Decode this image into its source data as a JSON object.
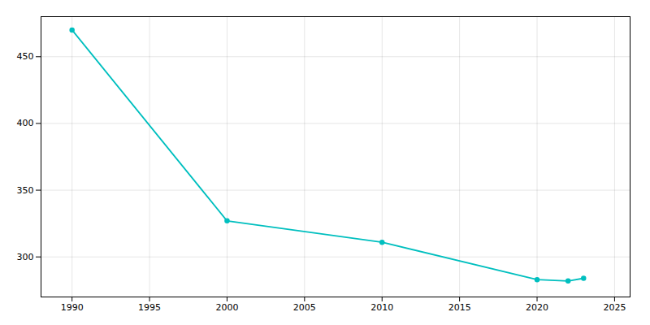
{
  "chart_data": {
    "type": "line",
    "x": [
      1990,
      2000,
      2010,
      2020,
      2022,
      2023
    ],
    "values": [
      470,
      327,
      311,
      283,
      282,
      284
    ],
    "color": "#00BFBF",
    "marker": "circle",
    "xlim": [
      1988,
      2026
    ],
    "ylim": [
      270,
      480
    ],
    "xticks": [
      1990,
      1995,
      2000,
      2005,
      2010,
      2015,
      2020,
      2025
    ],
    "yticks": [
      300,
      350,
      400,
      450
    ],
    "grid": true
  }
}
